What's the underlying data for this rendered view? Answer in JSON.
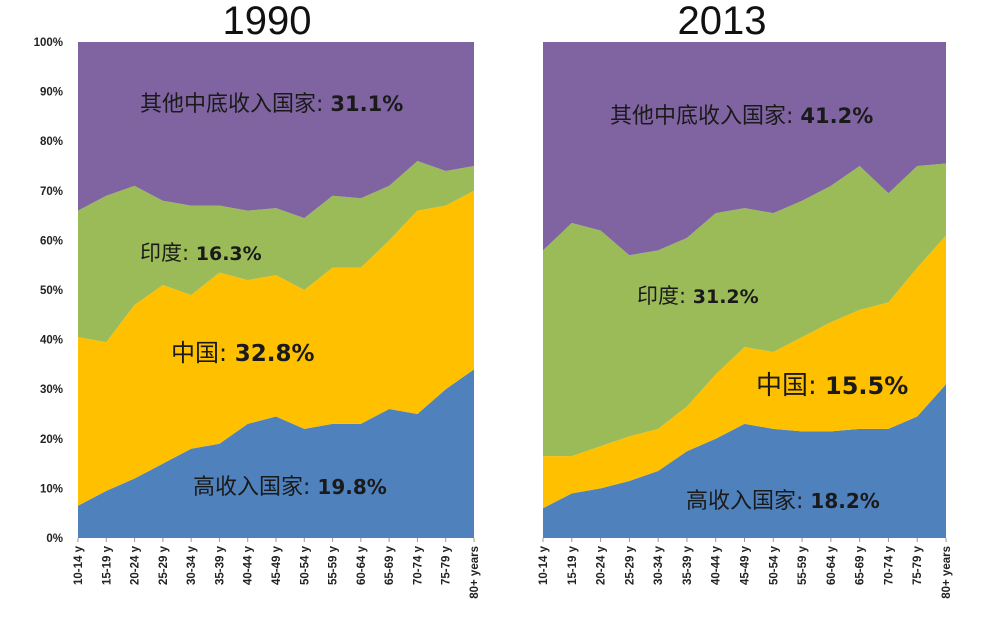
{
  "chart_data": [
    {
      "type": "area",
      "stacked": true,
      "title": "1990",
      "ylim": [
        0,
        100
      ],
      "yticks": [
        "0%",
        "10%",
        "20%",
        "30%",
        "40%",
        "50%",
        "60%",
        "70%",
        "80%",
        "90%",
        "100%"
      ],
      "categories": [
        "10-14 y",
        "15-19 y",
        "20-24 y",
        "25-29 y",
        "30-34 y",
        "35-39 y",
        "40-44 y",
        "45-49 y",
        "50-54 y",
        "55-59 y",
        "60-64 y",
        "65-69 y",
        "70-74 y",
        "75-79 y",
        "80+ years"
      ],
      "series": [
        {
          "name": "高收入国家",
          "label": "19.8%",
          "color": "#4f81bd",
          "values": [
            6.5,
            9.5,
            12,
            15,
            18,
            19,
            23,
            24.5,
            22,
            23,
            23,
            26,
            25,
            30,
            34
          ]
        },
        {
          "name": "中国",
          "label": "32.8%",
          "color": "#ffc000",
          "values": [
            34,
            30,
            35,
            36,
            31,
            34.5,
            29,
            28.5,
            28,
            31.5,
            31.5,
            34,
            41,
            37,
            36
          ]
        },
        {
          "name": "印度",
          "label": "16.3%",
          "color": "#9bbb59",
          "values": [
            25.5,
            29.5,
            24,
            17,
            18,
            13.5,
            14,
            13.5,
            14.5,
            14.5,
            14,
            11,
            10,
            7,
            5
          ]
        },
        {
          "name": "其他中底收入国家",
          "label": "31.1%",
          "color": "#8064a2",
          "values": [
            34,
            31,
            29,
            32,
            33,
            33,
            34,
            33.5,
            35.5,
            31,
            31.5,
            29,
            24,
            26,
            25
          ]
        }
      ]
    },
    {
      "type": "area",
      "stacked": true,
      "title": "2013",
      "ylim": [
        0,
        100
      ],
      "categories": [
        "10-14 y",
        "15-19 y",
        "20-24 y",
        "25-29 y",
        "30-34 y",
        "35-39 y",
        "40-44 y",
        "45-49 y",
        "50-54 y",
        "55-59 y",
        "60-64 y",
        "65-69 y",
        "70-74 y",
        "75-79 y",
        "80+ years"
      ],
      "series": [
        {
          "name": "高收入国家",
          "label": "18.2%",
          "color": "#4f81bd",
          "values": [
            6,
            9,
            10,
            11.5,
            13.5,
            17.5,
            20,
            23,
            22,
            21.5,
            21.5,
            22,
            22,
            24.5,
            31
          ]
        },
        {
          "name": "中国",
          "label": "15.5%",
          "color": "#ffc000",
          "values": [
            10.5,
            7.5,
            8.5,
            9,
            8.5,
            9,
            13,
            15.5,
            15.5,
            19,
            22,
            24,
            25.5,
            30,
            30
          ]
        },
        {
          "name": "印度",
          "label": "31.2%",
          "color": "#9bbb59",
          "values": [
            41.5,
            47,
            43.5,
            36.5,
            36,
            34,
            32.5,
            28,
            28,
            27.5,
            27.5,
            29,
            22,
            20.5,
            14.5
          ]
        },
        {
          "name": "其他中底收入国家",
          "label": "41.2%",
          "color": "#8064a2",
          "values": [
            42,
            36.5,
            38,
            43,
            42,
            39.5,
            34.5,
            33.5,
            34.5,
            32,
            29,
            25,
            30.5,
            25,
            24.5
          ]
        }
      ]
    }
  ]
}
